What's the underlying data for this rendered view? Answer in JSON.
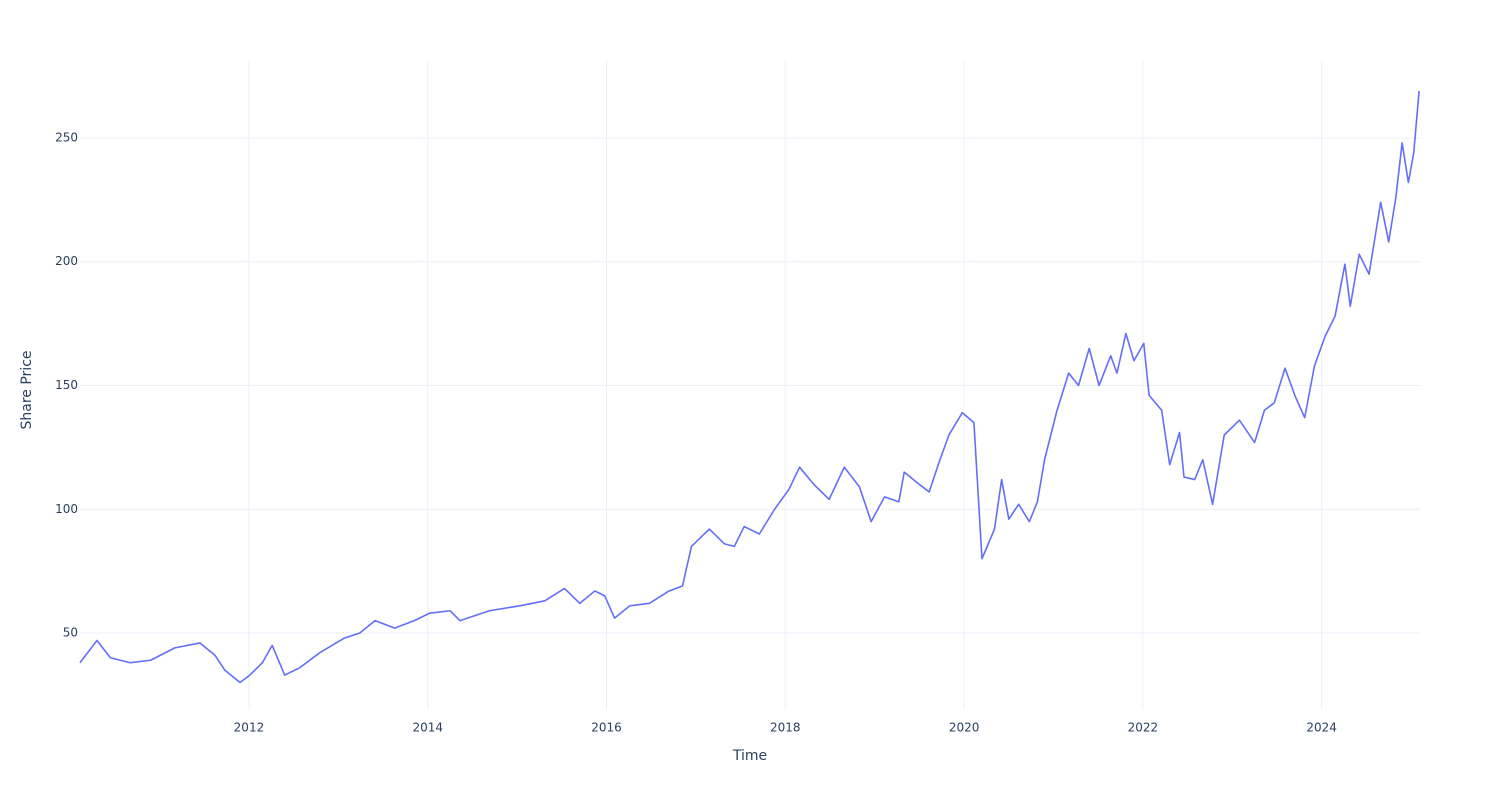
{
  "chart_data": {
    "type": "line",
    "x_label": "Time",
    "y_label": "Share Price",
    "x": [
      2010.11,
      2010.3,
      2010.45,
      2010.67,
      2010.9,
      2011.17,
      2011.45,
      2011.62,
      2011.73,
      2011.9,
      2012.01,
      2012.15,
      2012.26,
      2012.4,
      2012.57,
      2012.79,
      2013.07,
      2013.24,
      2013.41,
      2013.63,
      2013.85,
      2014.02,
      2014.25,
      2014.36,
      2014.69,
      2015.03,
      2015.31,
      2015.53,
      2015.7,
      2015.87,
      2015.98,
      2016.09,
      2016.26,
      2016.48,
      2016.7,
      2016.85,
      2016.95,
      2017.15,
      2017.32,
      2017.43,
      2017.54,
      2017.71,
      2017.88,
      2018.04,
      2018.16,
      2018.32,
      2018.49,
      2018.66,
      2018.83,
      2018.96,
      2019.11,
      2019.27,
      2019.33,
      2019.5,
      2019.61,
      2019.72,
      2019.83,
      2019.98,
      2020.11,
      2020.2,
      2020.34,
      2020.42,
      2020.5,
      2020.61,
      2020.73,
      2020.82,
      2020.9,
      2021.04,
      2021.17,
      2021.28,
      2021.4,
      2021.51,
      2021.64,
      2021.71,
      2021.81,
      2021.9,
      2022.01,
      2022.07,
      2022.21,
      2022.3,
      2022.41,
      2022.46,
      2022.58,
      2022.67,
      2022.78,
      2022.91,
      2023.08,
      2023.25,
      2023.36,
      2023.47,
      2023.59,
      2023.7,
      2023.81,
      2023.92,
      2024.04,
      2024.15,
      2024.26,
      2024.32,
      2024.42,
      2024.53,
      2024.66,
      2024.75,
      2024.83,
      2024.9,
      2024.97,
      2025.03,
      2025.09
    ],
    "series": [
      {
        "name": "Share Price",
        "color": "#636efa",
        "values": [
          38,
          47,
          40,
          38,
          39,
          44,
          46,
          41,
          35,
          30,
          33,
          38,
          45,
          33,
          36,
          42,
          48,
          50,
          55,
          52,
          55,
          58,
          59,
          55,
          59,
          61,
          63,
          68,
          62,
          67,
          65,
          56,
          61,
          62,
          67,
          69,
          85,
          92,
          86,
          85,
          93,
          90,
          100,
          108,
          117,
          110,
          104,
          117,
          109,
          95,
          105,
          103,
          115,
          110,
          107,
          119,
          130,
          139,
          135,
          80,
          92,
          112,
          96,
          102,
          95,
          103,
          120,
          140,
          155,
          150,
          165,
          150,
          162,
          155,
          171,
          160,
          167,
          146,
          140,
          118,
          131,
          113,
          112,
          120,
          102,
          130,
          136,
          127,
          140,
          143,
          157,
          146,
          137,
          158,
          170,
          178,
          199,
          182,
          203,
          195,
          224,
          208,
          226,
          248,
          232,
          244,
          269
        ]
      }
    ],
    "xlim": [
      2010.11,
      2025.1
    ],
    "xticks": [
      2012,
      2014,
      2016,
      2018,
      2020,
      2022,
      2024
    ],
    "ylim": [
      18.9,
      281.5
    ],
    "yticks": [
      50,
      100,
      150,
      200,
      250
    ],
    "grid": true
  }
}
